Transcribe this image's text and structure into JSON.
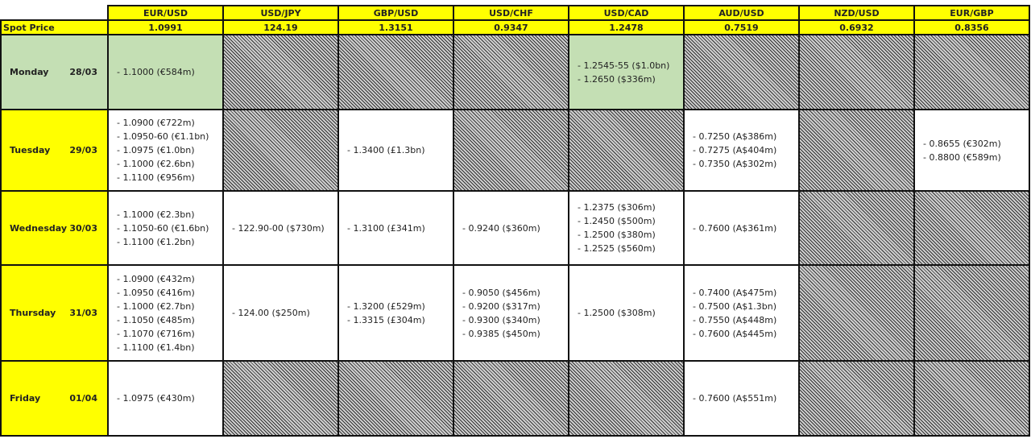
{
  "pairs": [
    "EUR/USD",
    "USD/JPY",
    "GBP/USD",
    "USD/CHF",
    "USD/CAD",
    "AUD/USD",
    "NZD/USD",
    "EUR/GBP"
  ],
  "spot_label": "Spot Price",
  "spot": [
    "1.0991",
    "124.19",
    "1.3151",
    "0.9347",
    "1.2478",
    "0.7519",
    "0.6932",
    "0.8356"
  ],
  "colors": {
    "header": "#ffff00",
    "highlight": "#c4dfb4"
  },
  "rows": [
    {
      "day": "Monday",
      "date": "28/03",
      "highlight": true,
      "cells": [
        [
          "- 1.1000 (€584m)"
        ],
        null,
        null,
        null,
        [
          "- 1.2545-55 ($1.0bn)",
          "- 1.2650 ($336m)"
        ],
        null,
        null,
        null
      ]
    },
    {
      "day": "Tuesday",
      "date": "29/03",
      "highlight": false,
      "cells": [
        [
          "- 1.0900 (€722m)",
          "- 1.0950-60 (€1.1bn)",
          "- 1.0975 (€1.0bn)",
          "- 1.1000 (€2.6bn)",
          "- 1.1100 (€956m)"
        ],
        null,
        [
          "- 1.3400 (£1.3bn)"
        ],
        null,
        null,
        [
          "- 0.7250 (A$386m)",
          "- 0.7275 (A$404m)",
          "- 0.7350 (A$302m)"
        ],
        null,
        [
          "- 0.8655 (€302m)",
          "- 0.8800 (€589m)"
        ]
      ]
    },
    {
      "day": "Wednesday",
      "date": "30/03",
      "highlight": false,
      "cells": [
        [
          "- 1.1000 (€2.3bn)",
          "- 1.1050-60 (€1.6bn)",
          "- 1.1100 (€1.2bn)"
        ],
        [
          "- 122.90-00 ($730m)"
        ],
        [
          "- 1.3100 (£341m)"
        ],
        [
          "- 0.9240 ($360m)"
        ],
        [
          "- 1.2375 ($306m)",
          "- 1.2450 ($500m)",
          "- 1.2500 ($380m)",
          "- 1.2525 ($560m)"
        ],
        [
          "- 0.7600 (A$361m)"
        ],
        null,
        null
      ]
    },
    {
      "day": "Thursday",
      "date": "31/03",
      "highlight": false,
      "cells": [
        [
          "- 1.0900 (€432m)",
          "- 1.0950 (€416m)",
          "- 1.1000 (€2.7bn)",
          "- 1.1050 (€485m)",
          "- 1.1070 (€716m)",
          "- 1.1100 (€1.4bn)"
        ],
        [
          "- 124.00 ($250m)"
        ],
        [
          "- 1.3200 (£529m)",
          "- 1.3315 (£304m)"
        ],
        [
          "- 0.9050 ($456m)",
          "- 0.9200 ($317m)",
          "- 0.9300 ($340m)",
          "- 0.9385 ($450m)"
        ],
        [
          "- 1.2500 ($308m)"
        ],
        [
          "- 0.7400 (A$475m)",
          "- 0.7500 (A$1.3bn)",
          "- 0.7550 (A$448m)",
          "- 0.7600 (A$445m)"
        ],
        null,
        null
      ]
    },
    {
      "day": "Friday",
      "date": "01/04",
      "highlight": false,
      "cells": [
        [
          "- 1.0975 (€430m)"
        ],
        null,
        null,
        null,
        null,
        [
          "- 0.7600 (A$551m)"
        ],
        null,
        null
      ]
    }
  ]
}
